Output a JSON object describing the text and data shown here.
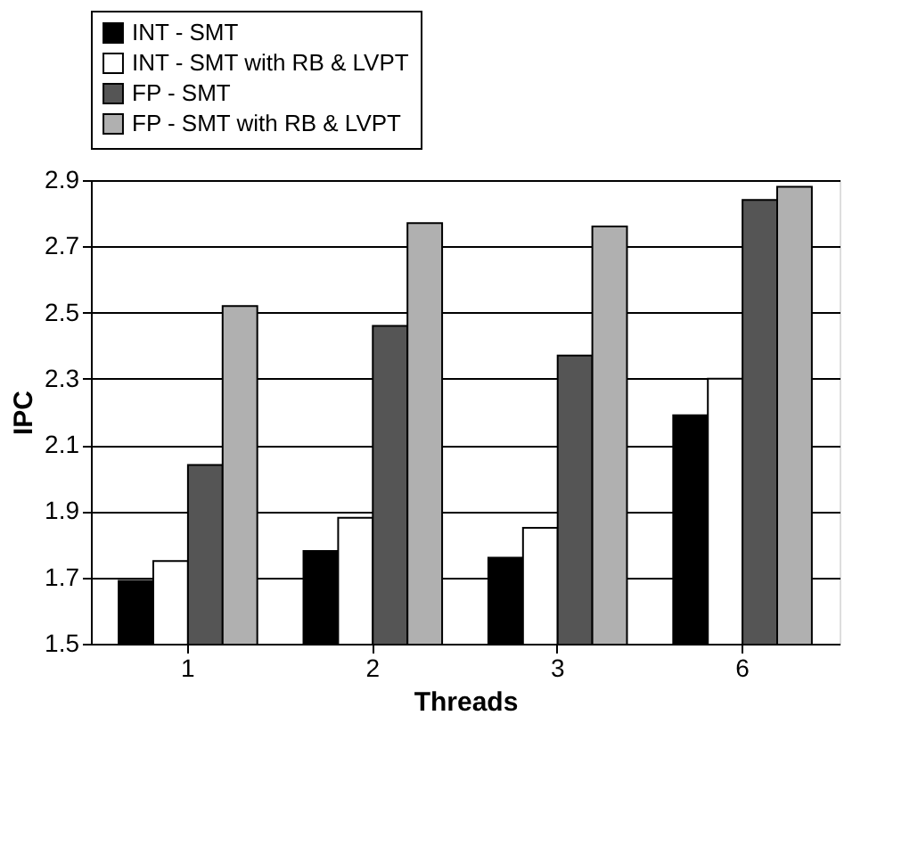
{
  "chart_data": {
    "type": "bar",
    "xlabel": "Threads",
    "ylabel": "IPC",
    "categories": [
      "1",
      "2",
      "3",
      "6"
    ],
    "series": [
      {
        "name": "INT - SMT",
        "color": "#000000",
        "values": [
          1.69,
          1.78,
          1.76,
          2.19
        ]
      },
      {
        "name": "INT - SMT with RB & LVPT",
        "color": "#ffffff",
        "values": [
          1.75,
          1.88,
          1.85,
          2.3
        ]
      },
      {
        "name": "FP - SMT",
        "color": "#555555",
        "values": [
          2.04,
          2.46,
          2.37,
          2.84
        ]
      },
      {
        "name": "FP - SMT with RB & LVPT",
        "color": "#b0b0b0",
        "values": [
          2.52,
          2.77,
          2.76,
          2.88
        ]
      }
    ],
    "ylim": [
      1.5,
      2.9
    ],
    "yticks": [
      1.5,
      1.7,
      1.9,
      2.1,
      2.3,
      2.5,
      2.7,
      2.9
    ],
    "grid": "y",
    "legend": "top"
  }
}
